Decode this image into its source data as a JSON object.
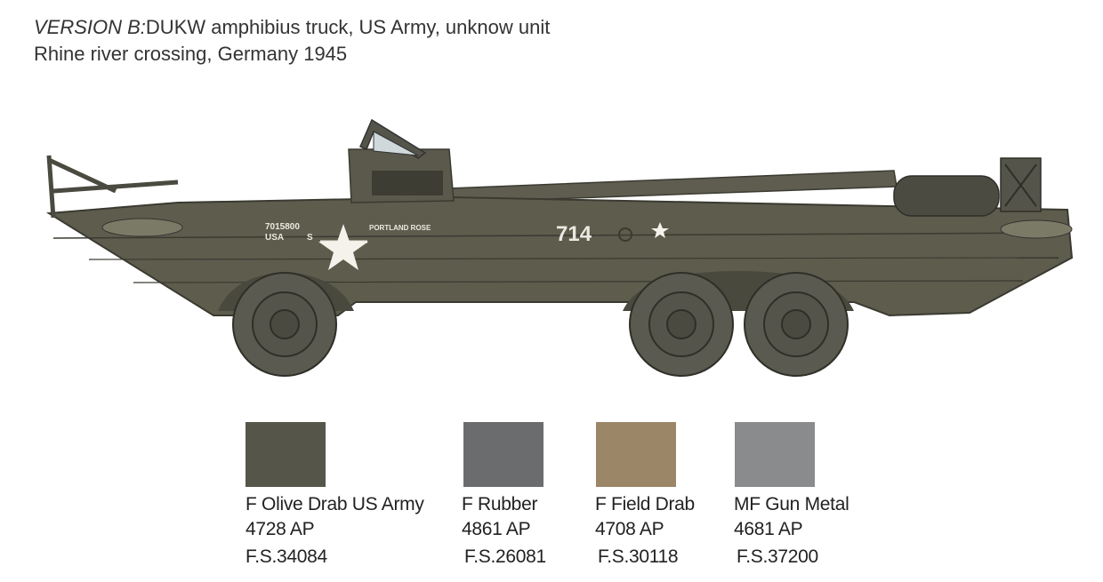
{
  "header": {
    "version_prefix": "VERSION B:",
    "title_rest": "DUKW amphibius truck, US Army, unknow unit",
    "subtitle": "Rhine river crossing, Germany 1945"
  },
  "vehicle_markings": {
    "serial": "7015800",
    "usa": "USA",
    "s": "S",
    "name": "PORTLAND ROSE",
    "number": "714"
  },
  "colors": [
    {
      "name": "F Olive Drab US Army",
      "code": "4728 AP",
      "fs": "F.S.34084",
      "hex": "#55554a"
    },
    {
      "name": "F Rubber",
      "code": "4861 AP",
      "fs": "F.S.26081",
      "hex": "#6b6c6e"
    },
    {
      "name": "F Field Drab",
      "code": "4708 AP",
      "fs": "F.S.30118",
      "hex": "#9b8767"
    },
    {
      "name": "MF Gun Metal",
      "code": "4681 AP",
      "fs": "F.S.37200",
      "hex": "#8a8b8d"
    }
  ]
}
